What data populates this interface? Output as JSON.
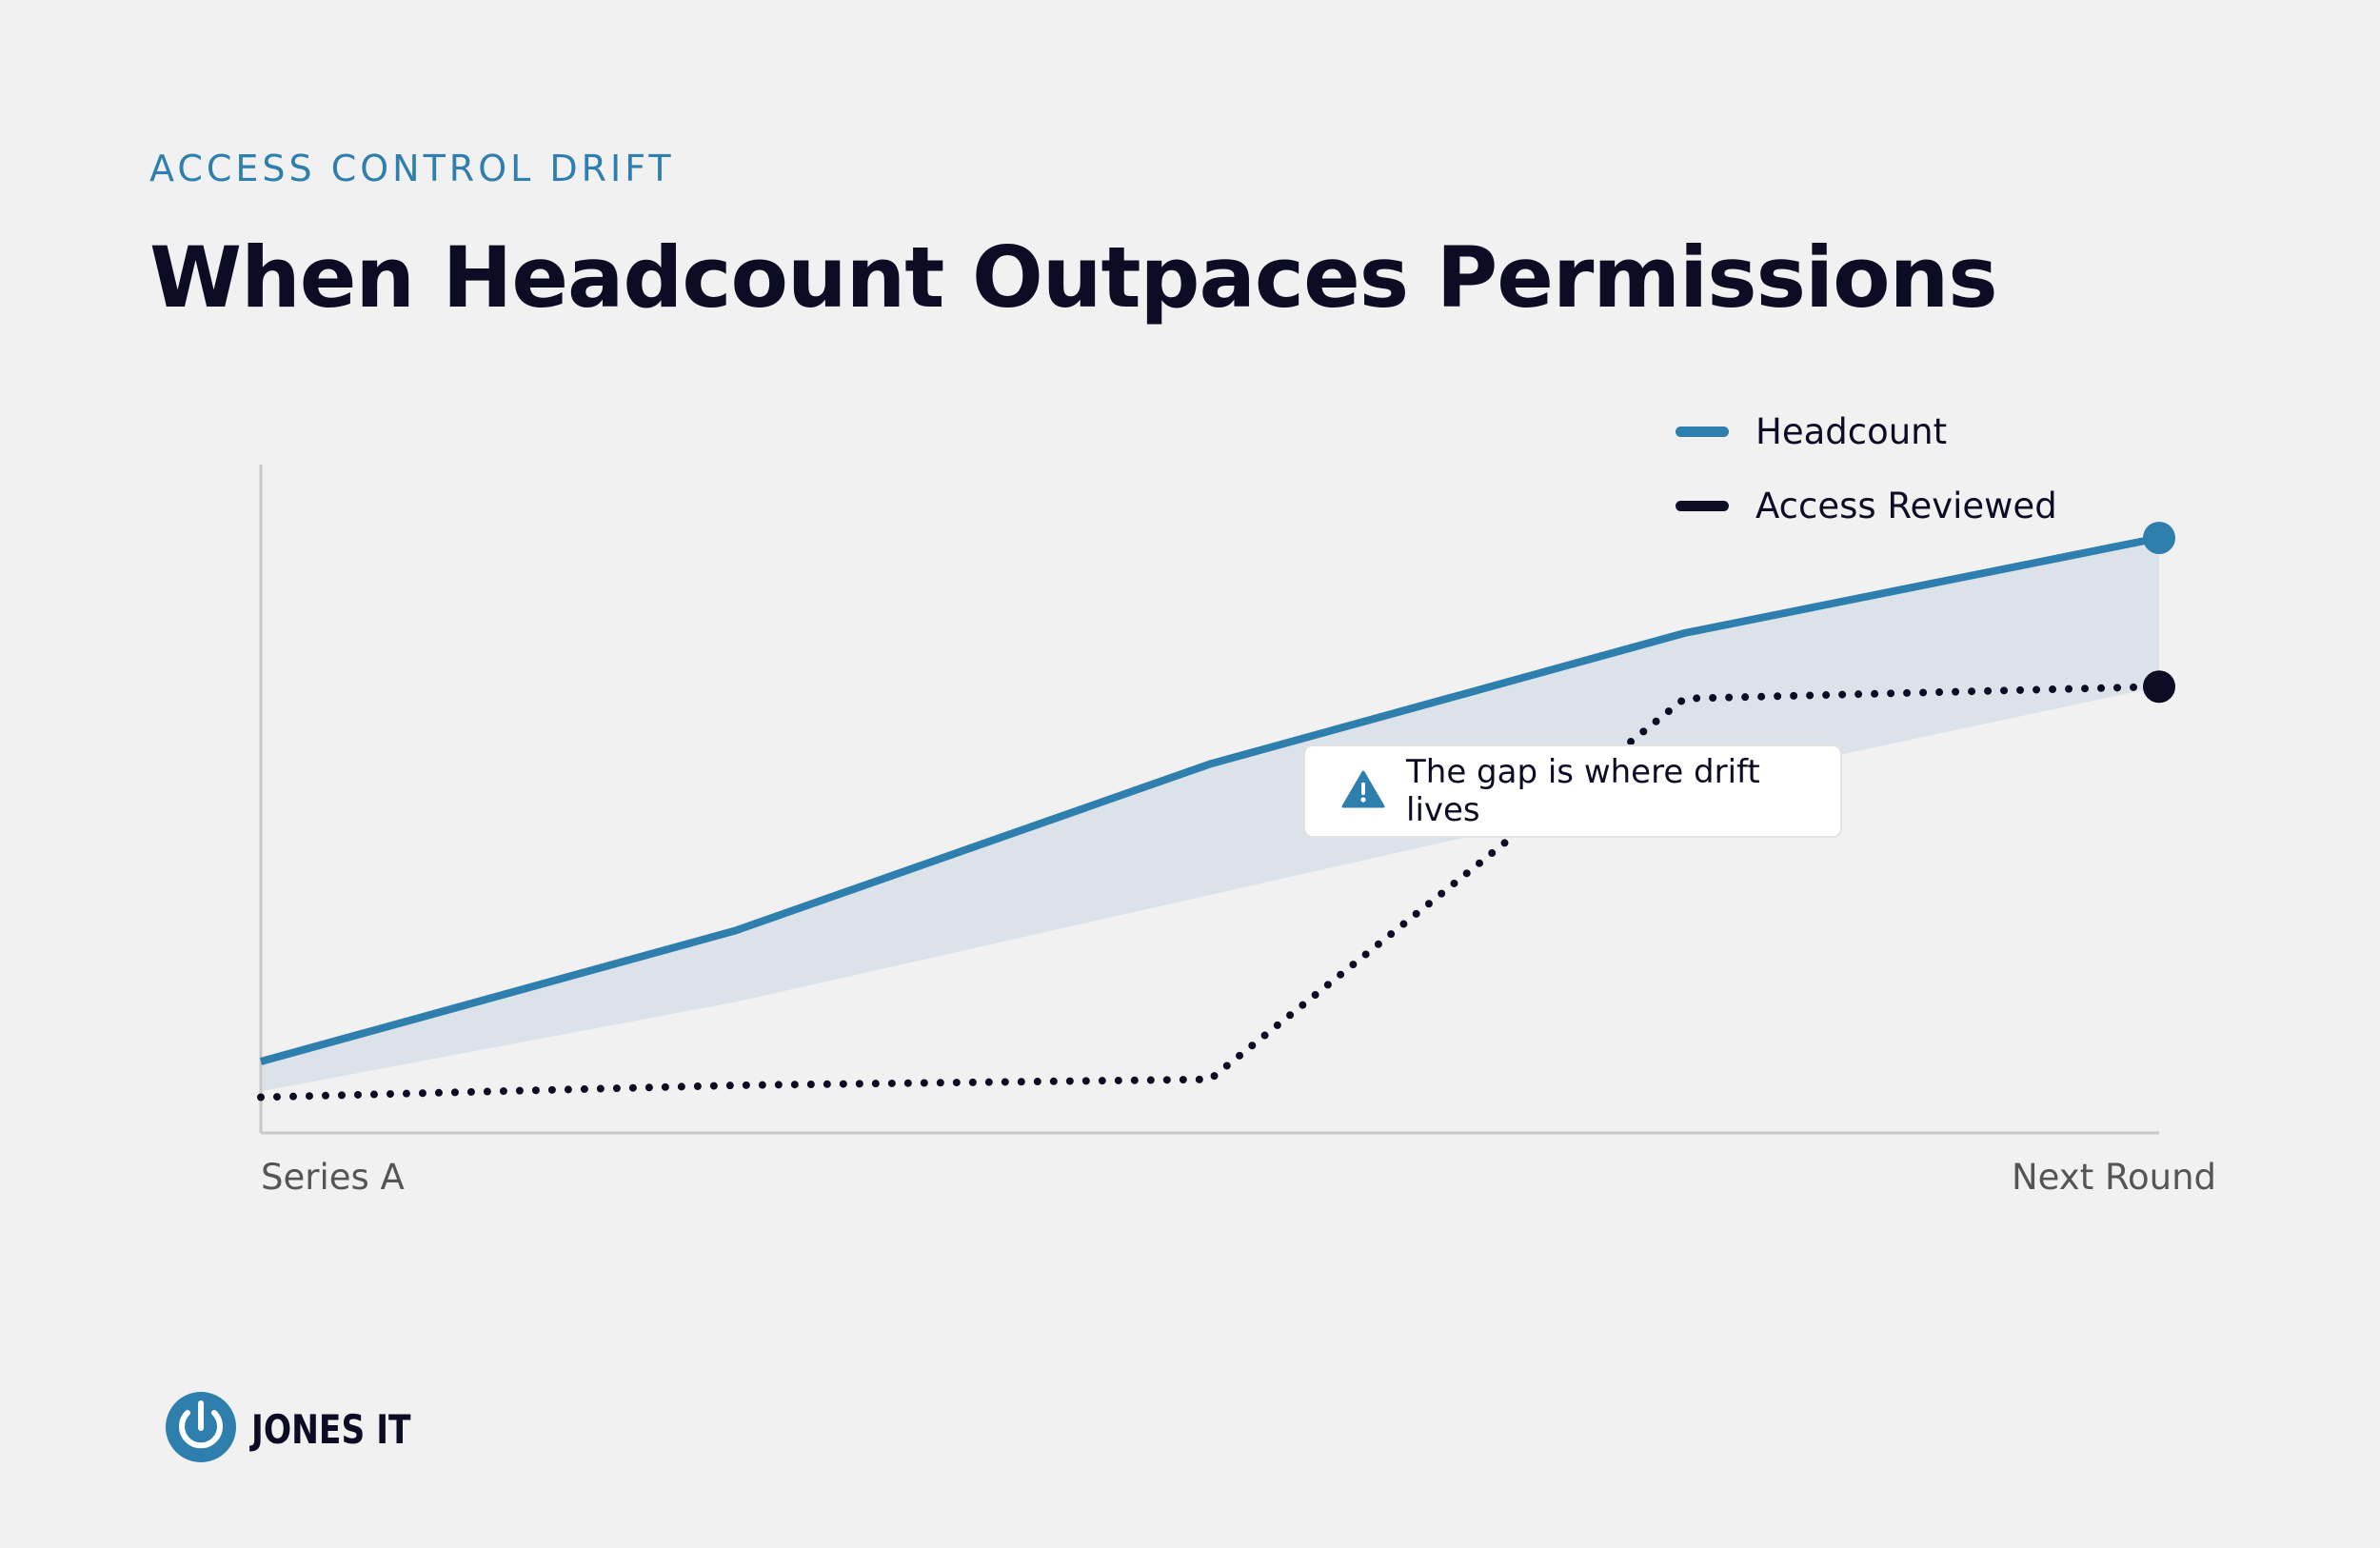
{
  "eyebrow": "ACCESS CONTROL DRIFT",
  "title": "When Headcount Outpaces Permissions",
  "callout": {
    "text": "The gap is where drift lives",
    "icon": "warning-icon"
  },
  "logo": {
    "text": "JONES IT",
    "icon": "power-icon"
  },
  "colors": {
    "headcount": "#2e7fae",
    "access": "#0c0d24",
    "gap": "#dbe2ea",
    "axis": "#c8c8c8"
  },
  "chart_data": {
    "type": "line",
    "x_tick_labels": [
      "Series A",
      "Next Round"
    ],
    "x": [
      0,
      1,
      2,
      3,
      4
    ],
    "ylim": [
      0,
      100
    ],
    "grid": false,
    "legend_position": "top-right",
    "series": [
      {
        "name": "Headcount",
        "values": [
          12,
          34,
          62,
          84,
          100
        ],
        "style": "solid"
      },
      {
        "name": "Access Reviewed",
        "values": [
          6,
          8,
          9,
          73,
          75
        ],
        "style": "dotted"
      }
    ],
    "gap_band": {
      "lower": [
        7,
        22,
        40,
        58,
        75
      ],
      "upper": [
        12,
        34,
        62,
        84,
        100
      ]
    }
  }
}
